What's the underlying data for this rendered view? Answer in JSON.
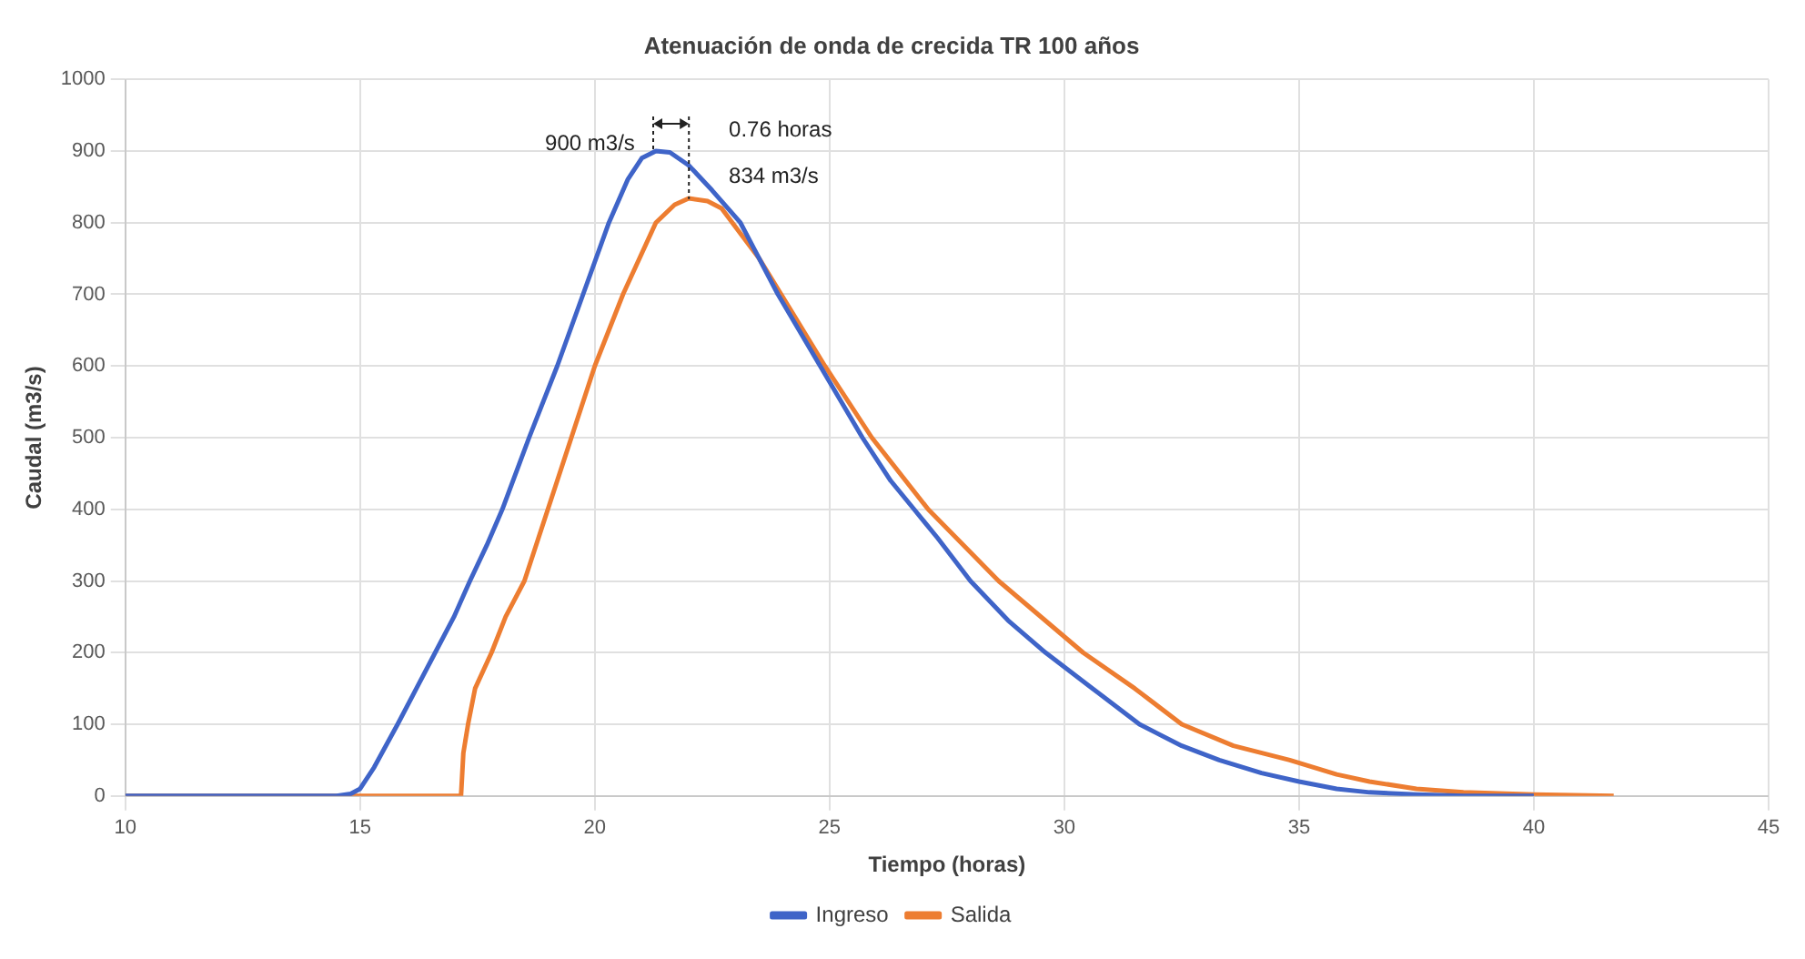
{
  "chart_data": {
    "type": "line",
    "title": "Atenuación de onda de crecida TR 100 años",
    "xlabel": "Tiempo (horas)",
    "ylabel": "Caudal (m3/s)",
    "xlim": [
      10,
      45
    ],
    "xticks": [
      10,
      15,
      20,
      25,
      30,
      35,
      40,
      45
    ],
    "ylim": [
      0,
      1000
    ],
    "yticks": [
      0,
      100,
      200,
      300,
      400,
      500,
      600,
      700,
      800,
      900,
      1000
    ],
    "grid": true,
    "legend": "bottom",
    "marker": "none",
    "line_style": "solid",
    "annotations": [
      {
        "text": "900 m3/s",
        "x": 21.24,
        "y": 900
      },
      {
        "text": "834 m3/s",
        "x": 22,
        "y": 834
      },
      "0.76 horas"
    ],
    "series": [
      {
        "name": "Ingreso",
        "color": "#3f64c8",
        "x": [
          10,
          14.5,
          14.8,
          15,
          15.3,
          15.8,
          16.2,
          16.6,
          17,
          17.34,
          17.7,
          18.03,
          18.6,
          19.2,
          19.75,
          20.3,
          20.7,
          21.0,
          21.3,
          21.6,
          22.0,
          22.5,
          23.1,
          23.9,
          24.8,
          25.7,
          26.3,
          26.8,
          27.3,
          28.0,
          28.8,
          29.6,
          30.6,
          31.6,
          32.5,
          33.3,
          34.2,
          35.0,
          35.8,
          36.5,
          37.5,
          38.5,
          40
        ],
        "values": [
          0,
          0,
          3,
          10,
          40,
          100,
          150,
          200,
          250,
          300,
          350,
          400,
          500,
          600,
          700,
          800,
          860,
          890,
          900,
          898,
          880,
          845,
          800,
          700,
          600,
          500,
          440,
          400,
          360,
          300,
          245,
          200,
          150,
          100,
          70,
          50,
          32,
          20,
          10,
          5,
          2,
          0,
          0
        ]
      },
      {
        "name": "Salida",
        "color": "#ed7d31",
        "x": [
          10,
          17.15,
          17.2,
          17.3,
          17.45,
          17.8,
          18.1,
          18.5,
          19.0,
          19.5,
          20.0,
          20.6,
          21.3,
          21.7,
          22.0,
          22.4,
          22.7,
          23.5,
          24.2,
          24.9,
          25.9,
          27.1,
          28.6,
          30.4,
          31.5,
          32.5,
          33.6,
          34.8,
          35.8,
          36.5,
          37.5,
          38.5,
          40,
          41.7
        ],
        "values": [
          0,
          0,
          60,
          100,
          150,
          200,
          250,
          300,
          400,
          500,
          600,
          700,
          800,
          825,
          834,
          830,
          820,
          750,
          675,
          600,
          500,
          400,
          300,
          200,
          150,
          100,
          70,
          50,
          30,
          20,
          10,
          5,
          2,
          0
        ]
      }
    ]
  }
}
